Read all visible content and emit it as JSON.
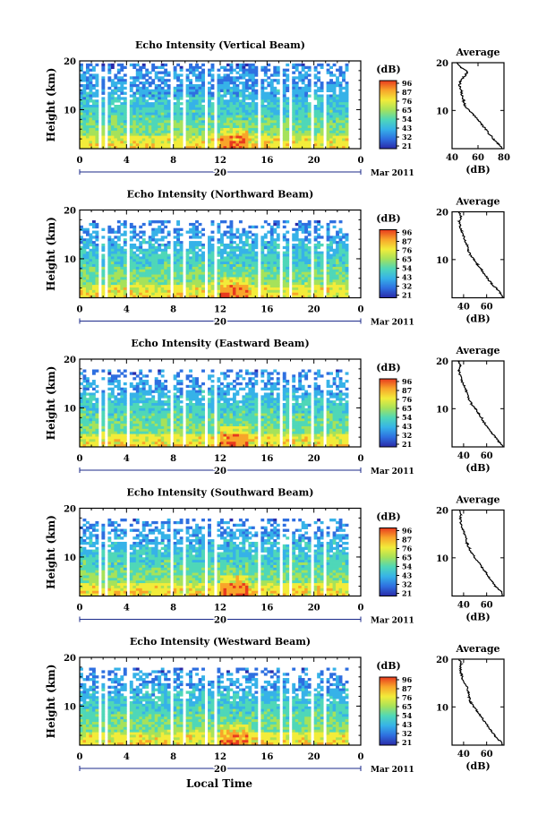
{
  "figure": {
    "xlabel": "Local Time",
    "date_label": "20",
    "month_label": "Mar 2011"
  },
  "colorbar": {
    "label": "(dB)",
    "tick_labels": [
      "96",
      "87",
      "76",
      "65",
      "54",
      "43",
      "32",
      "21"
    ],
    "colors": [
      "#2a2aa8",
      "#2e6fe0",
      "#36b2e8",
      "#4fd7b8",
      "#a6e25a",
      "#f2ec3a",
      "#f8a52a",
      "#e83a1e"
    ]
  },
  "chart_data": [
    {
      "type": "heatmap",
      "title": "Echo Intensity (Vertical Beam)",
      "ylabel": "Height (km)",
      "xlabel": "Local Time",
      "x_ticks": [
        "0",
        "4",
        "8",
        "12",
        "16",
        "20",
        "0"
      ],
      "y_ticks": [
        "10",
        "20"
      ],
      "xlim": [
        0,
        24
      ],
      "ylim": [
        2,
        20
      ],
      "colorbar_range_db": [
        21,
        96
      ],
      "profile": {
        "title": "Average",
        "xlabel": "(dB)",
        "x_ticks": [
          "40",
          "60",
          "80"
        ],
        "xlim": [
          40,
          80
        ],
        "heights": [
          2,
          3,
          4,
          5,
          6,
          7,
          8,
          9,
          10,
          11,
          12,
          13,
          14,
          15,
          16,
          17,
          18,
          19,
          20
        ],
        "values": [
          78,
          76,
          72,
          69,
          66,
          63,
          60,
          57,
          53,
          50,
          49,
          48,
          47,
          46,
          46,
          49,
          52,
          47,
          44
        ]
      }
    },
    {
      "type": "heatmap",
      "title": "Echo Intensity (Northward Beam)",
      "ylabel": "Height (km)",
      "xlabel": "Local Time",
      "x_ticks": [
        "0",
        "4",
        "8",
        "12",
        "16",
        "20",
        "0"
      ],
      "y_ticks": [
        "10",
        "20"
      ],
      "xlim": [
        0,
        24
      ],
      "ylim": [
        2,
        20
      ],
      "colorbar_range_db": [
        21,
        96
      ],
      "profile": {
        "title": "Average",
        "xlabel": "(dB)",
        "x_ticks": [
          "40",
          "60"
        ],
        "xlim": [
          30,
          75
        ],
        "heights": [
          2,
          3,
          4,
          5,
          6,
          7,
          8,
          9,
          10,
          11,
          12,
          13,
          14,
          15,
          16,
          17,
          18,
          19,
          20
        ],
        "values": [
          74,
          72,
          68,
          64,
          61,
          58,
          55,
          52,
          49,
          46,
          44,
          43,
          41,
          40,
          38,
          37,
          36,
          38,
          36
        ]
      }
    },
    {
      "type": "heatmap",
      "title": "Echo Intensity (Eastward Beam)",
      "ylabel": "Height (km)",
      "xlabel": "Local Time",
      "x_ticks": [
        "0",
        "4",
        "8",
        "12",
        "16",
        "20",
        "0"
      ],
      "y_ticks": [
        "10",
        "20"
      ],
      "xlim": [
        0,
        24
      ],
      "ylim": [
        2,
        20
      ],
      "colorbar_range_db": [
        21,
        96
      ],
      "profile": {
        "title": "Average",
        "xlabel": "(dB)",
        "x_ticks": [
          "40",
          "60"
        ],
        "xlim": [
          30,
          75
        ],
        "heights": [
          2,
          3,
          4,
          5,
          6,
          7,
          8,
          9,
          10,
          11,
          12,
          13,
          14,
          15,
          16,
          17,
          18,
          19,
          20
        ],
        "values": [
          74,
          71,
          68,
          64,
          61,
          58,
          56,
          53,
          50,
          47,
          45,
          43,
          42,
          40,
          38,
          37,
          36,
          37,
          35
        ]
      }
    },
    {
      "type": "heatmap",
      "title": "Echo Intensity (Southward Beam)",
      "ylabel": "Height (km)",
      "xlabel": "Local Time",
      "x_ticks": [
        "0",
        "4",
        "8",
        "12",
        "16",
        "20",
        "0"
      ],
      "y_ticks": [
        "10",
        "20"
      ],
      "xlim": [
        0,
        24
      ],
      "ylim": [
        2,
        20
      ],
      "colorbar_range_db": [
        21,
        96
      ],
      "profile": {
        "title": "Average",
        "xlabel": "(dB)",
        "x_ticks": [
          "40",
          "60"
        ],
        "xlim": [
          30,
          75
        ],
        "heights": [
          2,
          3,
          4,
          5,
          6,
          7,
          8,
          9,
          10,
          11,
          12,
          13,
          14,
          15,
          16,
          17,
          18,
          19,
          20
        ],
        "values": [
          74,
          72,
          68,
          65,
          62,
          59,
          56,
          53,
          50,
          47,
          45,
          43,
          42,
          41,
          39,
          38,
          37,
          38,
          36
        ]
      }
    },
    {
      "type": "heatmap",
      "title": "Echo Intensity (Westward Beam)",
      "ylabel": "Height (km)",
      "xlabel": "Local Time",
      "x_ticks": [
        "0",
        "4",
        "8",
        "12",
        "16",
        "20",
        "0"
      ],
      "y_ticks": [
        "10",
        "20"
      ],
      "xlim": [
        0,
        24
      ],
      "ylim": [
        2,
        20
      ],
      "colorbar_range_db": [
        21,
        96
      ],
      "profile": {
        "title": "Average",
        "xlabel": "(dB)",
        "x_ticks": [
          "40",
          "60"
        ],
        "xlim": [
          30,
          75
        ],
        "heights": [
          2,
          3,
          4,
          5,
          6,
          7,
          8,
          9,
          10,
          11,
          12,
          13,
          14,
          15,
          16,
          17,
          18,
          19,
          20
        ],
        "values": [
          74,
          71,
          67,
          64,
          61,
          58,
          55,
          52,
          49,
          46,
          45,
          44,
          43,
          41,
          39,
          38,
          37,
          38,
          36
        ]
      }
    }
  ]
}
